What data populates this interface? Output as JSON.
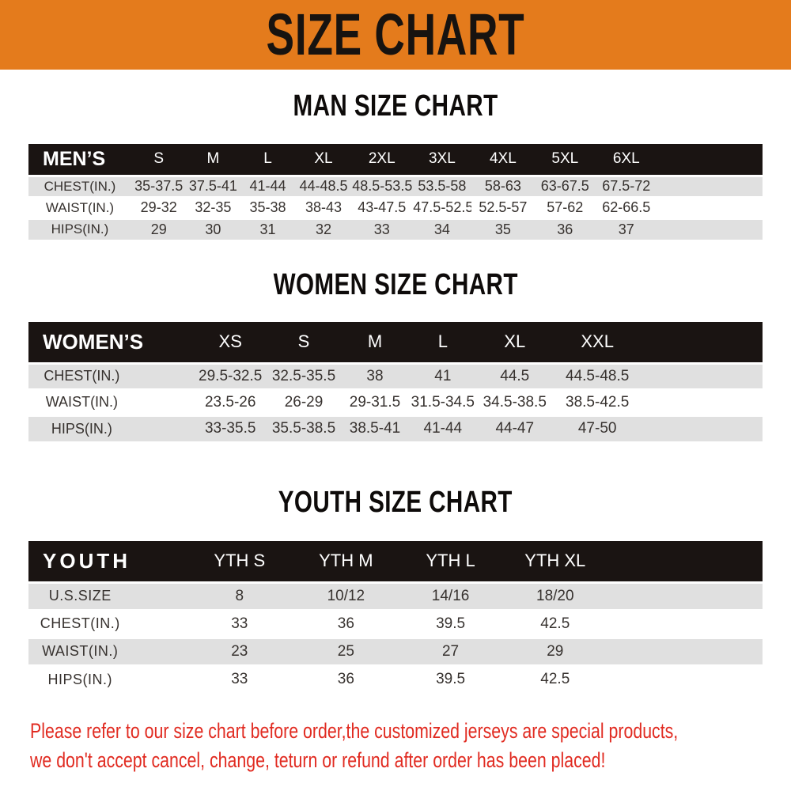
{
  "banner": {
    "title": "SIZE CHART"
  },
  "colors": {
    "banner_bg": "#E47B1C",
    "banner_text": "#171310",
    "table_header_bg": "#1A1412",
    "table_header_text": "#FFFFFF",
    "row_alt_bg": "#E0E0E0",
    "row_bg": "#FFFFFF",
    "body_text": "#37322F",
    "note_text": "#E12B21"
  },
  "sections": [
    {
      "heading": "MAN SIZE CHART",
      "table": {
        "header": [
          "MEN’S",
          "S",
          "M",
          "L",
          "XL",
          "2XL",
          "3XL",
          "4XL",
          "5XL",
          "6XL"
        ],
        "rows": [
          [
            "CHEST(IN.)",
            "35-37.5",
            "37.5-41",
            "41-44",
            "44-48.5",
            "48.5-53.5",
            "53.5-58",
            "58-63",
            "63-67.5",
            "67.5-72"
          ],
          [
            "WAIST(IN.)",
            "29-32",
            "32-35",
            "35-38",
            "38-43",
            "43-47.5",
            "47.5-52.5",
            "52.5-57",
            "57-62",
            "62-66.5"
          ],
          [
            "HIPS(IN.)",
            "29",
            "30",
            "31",
            "32",
            "33",
            "34",
            "35",
            "36",
            "37"
          ]
        ]
      }
    },
    {
      "heading": "WOMEN SIZE CHART",
      "table": {
        "header": [
          "WOMEN’S",
          "XS",
          "S",
          "M",
          "L",
          "XL",
          "XXL"
        ],
        "rows": [
          [
            "CHEST(IN.)",
            "29.5-32.5",
            "32.5-35.5",
            "38",
            "41",
            "44.5",
            "44.5-48.5"
          ],
          [
            "WAIST(IN.)",
            "23.5-26",
            "26-29",
            "29-31.5",
            "31.5-34.5",
            "34.5-38.5",
            "38.5-42.5"
          ],
          [
            "HIPS(IN.)",
            "33-35.5",
            "35.5-38.5",
            "38.5-41",
            "41-44",
            "44-47",
            "47-50"
          ]
        ]
      }
    },
    {
      "heading": "YOUTH SIZE CHART",
      "table": {
        "header": [
          "YOUTH",
          "YTH S",
          "YTH M",
          "YTH L",
          "YTH XL"
        ],
        "rows": [
          [
            "U.S.SIZE",
            "8",
            "10/12",
            "14/16",
            "18/20"
          ],
          [
            "CHEST(IN.)",
            "33",
            "36",
            "39.5",
            "42.5"
          ],
          [
            "WAIST(IN.)",
            "23",
            "25",
            "27",
            "29"
          ],
          [
            "HIPS(IN.)",
            "33",
            "36",
            "39.5",
            "42.5"
          ]
        ]
      }
    }
  ],
  "note": {
    "line1": "Please refer to our size chart before order,the customized jerseys are special products,",
    "line2": "we don't accept cancel, change, teturn or refund after order has been placed!"
  }
}
